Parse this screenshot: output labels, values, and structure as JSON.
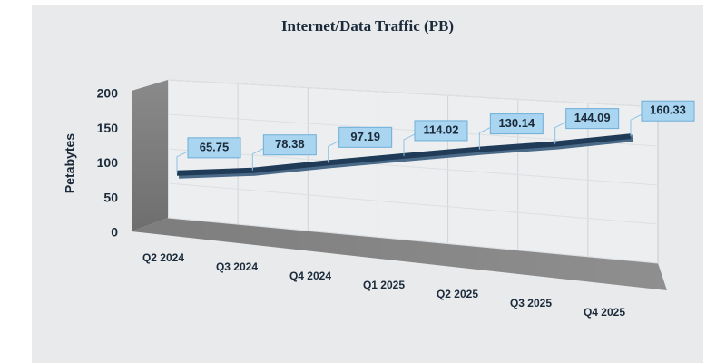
{
  "chart_data": {
    "type": "line",
    "title": "Internet/Data Traffic (PB)",
    "y_label": "Petabytes",
    "categories": [
      "Q2 2024",
      "Q3 2024",
      "Q4 2024",
      "Q1 2025",
      "Q2 2025",
      "Q3 2025",
      "Q4 2025"
    ],
    "values": [
      65.75,
      78.38,
      97.19,
      114.02,
      130.14,
      144.09,
      160.33
    ],
    "color": "#1f3b57",
    "label_color": "#a9d5f0",
    "ylim": [
      0,
      200
    ],
    "yticks": [
      0,
      50,
      100,
      150,
      200
    ],
    "grid": true
  }
}
